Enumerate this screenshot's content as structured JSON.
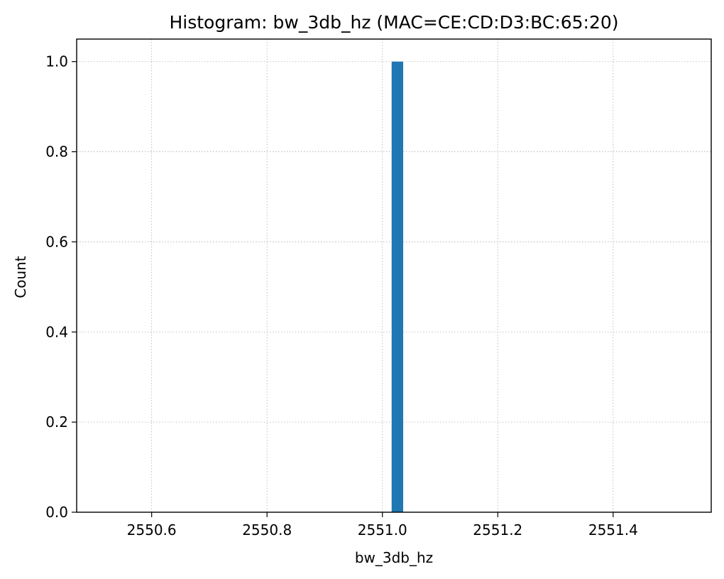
{
  "chart_data": {
    "type": "bar",
    "title": "Histogram: bw_3db_hz (MAC=CE:CD:D3:BC:65:20)",
    "xlabel": "bw_3db_hz",
    "ylabel": "Count",
    "xlim": [
      2550.47,
      2551.57
    ],
    "ylim": [
      0,
      1.05
    ],
    "grid": true,
    "x_ticks": [
      2550.6,
      2550.8,
      2551.0,
      2551.2,
      2551.4
    ],
    "x_tick_labels": [
      "2550.6",
      "2550.8",
      "2551.0",
      "2551.2",
      "2551.4"
    ],
    "y_ticks": [
      0.0,
      0.2,
      0.4,
      0.6,
      0.8,
      1.0
    ],
    "y_tick_labels": [
      "0.0",
      "0.2",
      "0.4",
      "0.6",
      "0.8",
      "1.0"
    ],
    "bins": [
      {
        "x_start": 2551.016,
        "x_end": 2551.036,
        "count": 1
      }
    ],
    "bar_color": "#1f77b4"
  }
}
